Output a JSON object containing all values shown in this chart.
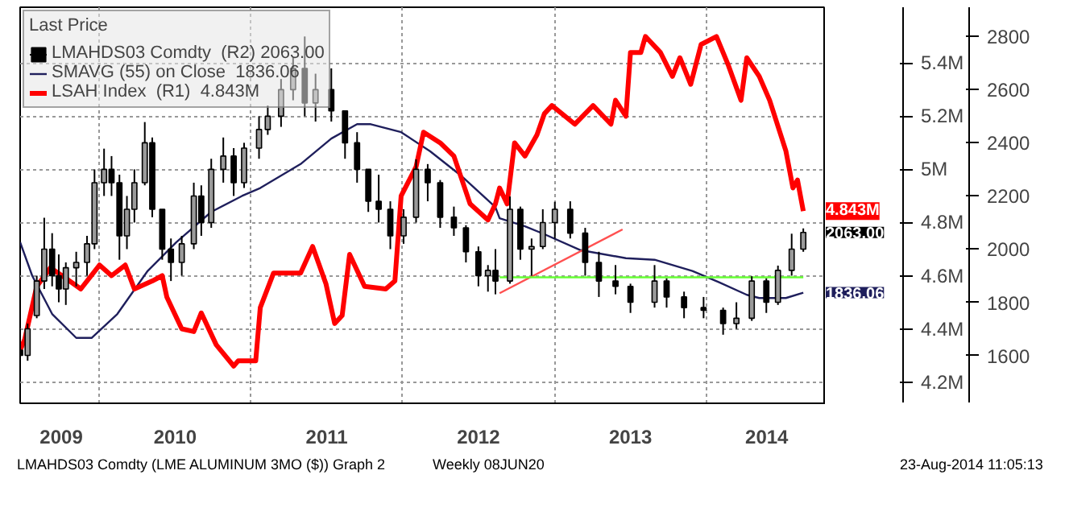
{
  "chart_data": {
    "type": "line",
    "xlim": [
      "2009-06-24",
      "2014-10-15"
    ],
    "xticks": [
      {
        "value": "2009-10-01",
        "label": "2009"
      },
      {
        "value": "2010-01-01",
        "label": null
      },
      {
        "value": "2010-07-02",
        "label": "2010"
      },
      {
        "value": "2011-01-01",
        "label": null
      },
      {
        "value": "2011-07-02",
        "label": "2011"
      },
      {
        "value": "2012-01-01",
        "label": null
      },
      {
        "value": "2012-07-01",
        "label": "2012"
      },
      {
        "value": "2013-01-01",
        "label": null
      },
      {
        "value": "2013-07-02",
        "label": "2013"
      },
      {
        "value": "2014-01-01",
        "label": null
      },
      {
        "value": "2014-05-26",
        "label": "2014"
      }
    ],
    "ylim": [
      4.12,
      5.61
    ],
    "yticks": [
      {
        "value": 4.2,
        "label": "4.2M"
      },
      {
        "value": 4.4,
        "label": "4.4M"
      },
      {
        "value": 4.6,
        "label": "4.6M"
      },
      {
        "value": 4.8,
        "label": "4.8M"
      },
      {
        "value": 5.0,
        "label": "5M"
      },
      {
        "value": 5.2,
        "label": "5.2M"
      },
      {
        "value": 5.4,
        "label": "5.4M"
      }
    ],
    "y2lim": [
      1420,
      2910
    ],
    "y2ticks": [
      1600,
      1800,
      2000,
      2200,
      2400,
      2600,
      2800
    ],
    "grid": true,
    "legend": "top left",
    "legend_title": "Last Price",
    "annotations": [
      "LMAHDS03 Comdty (LME ALUMINUM  3MO ($)) Graph 2",
      "Weekly 08JUN20",
      "23-Aug-2014 11:05:13"
    ],
    "series": [
      {
        "type": "candlestick",
        "name": "LMAHDS03 Comdty  (R2) 2063.00",
        "color": "#000000",
        "axis": "y2",
        "x": [
          "2009-06-24",
          "2009-07-12",
          "2009-08-03",
          "2009-08-21",
          "2009-09-09",
          "2009-09-25",
          "2009-10-12",
          "2009-11-06",
          "2009-12-02",
          "2009-12-20",
          "2010-01-12",
          "2010-01-30",
          "2010-02-18",
          "2010-03-08",
          "2010-03-26",
          "2010-04-20",
          "2010-05-08",
          "2010-06-01",
          "2010-06-22",
          "2010-07-18",
          "2010-08-16",
          "2010-09-03",
          "2010-09-27",
          "2010-10-26",
          "2010-11-20",
          "2010-12-15",
          "2011-01-20",
          "2011-02-10",
          "2011-03-14",
          "2011-04-12",
          "2011-05-10",
          "2011-06-05",
          "2011-07-13",
          "2011-08-15",
          "2011-09-13",
          "2011-10-10",
          "2011-11-04",
          "2011-12-02",
          "2012-01-03",
          "2012-02-02",
          "2012-03-01",
          "2012-03-31",
          "2012-05-03",
          "2012-06-01",
          "2012-07-01",
          "2012-07-24",
          "2012-08-11",
          "2012-09-15",
          "2012-10-10",
          "2012-11-06",
          "2012-12-03",
          "2013-01-01",
          "2013-02-07",
          "2013-03-15",
          "2013-04-17",
          "2013-05-27",
          "2013-07-02",
          "2013-08-29",
          "2013-09-27",
          "2013-11-08",
          "2013-12-25",
          "2014-02-10",
          "2014-03-14",
          "2014-04-20",
          "2014-05-25",
          "2014-06-22",
          "2014-07-25",
          "2014-08-22"
        ],
        "ohlc": [
          [
            1620,
            1700,
            1560,
            1600
          ],
          [
            1600,
            1720,
            1580,
            1700
          ],
          [
            1750,
            1900,
            1740,
            1880
          ],
          [
            1880,
            2118,
            1850,
            2000
          ],
          [
            2000,
            2060,
            1860,
            1900
          ],
          [
            1900,
            1980,
            1800,
            1850
          ],
          [
            1850,
            1950,
            1790,
            1930
          ],
          [
            1930,
            1990,
            1860,
            1950
          ],
          [
            1950,
            2050,
            1900,
            2020
          ],
          [
            2020,
            2300,
            2000,
            2250
          ],
          [
            2250,
            2378,
            2200,
            2300
          ],
          [
            2300,
            2350,
            2200,
            2250
          ],
          [
            2250,
            2280,
            1960,
            2050
          ],
          [
            2050,
            2200,
            2000,
            2150
          ],
          [
            2150,
            2300,
            2100,
            2250
          ],
          [
            2250,
            2478,
            2240,
            2400
          ],
          [
            2400,
            2420,
            2120,
            2150
          ],
          [
            2150,
            2150,
            1960,
            2000
          ],
          [
            2000,
            2040,
            1880,
            1950
          ],
          [
            1950,
            2050,
            1900,
            2020
          ],
          [
            2020,
            2250,
            2000,
            2200
          ],
          [
            2200,
            2240,
            2050,
            2100
          ],
          [
            2100,
            2340,
            2080,
            2300
          ],
          [
            2300,
            2420,
            2250,
            2350
          ],
          [
            2350,
            2380,
            2200,
            2250
          ],
          [
            2250,
            2400,
            2230,
            2380
          ],
          [
            2380,
            2500,
            2340,
            2450
          ],
          [
            2450,
            2540,
            2430,
            2500
          ],
          [
            2500,
            2640,
            2460,
            2600
          ],
          [
            2600,
            2720,
            2560,
            2680
          ],
          [
            2680,
            2800,
            2500,
            2550
          ],
          [
            2550,
            2660,
            2480,
            2600
          ],
          [
            2600,
            2680,
            2480,
            2520
          ],
          [
            2520,
            2520,
            2340,
            2400
          ],
          [
            2400,
            2440,
            2250,
            2300
          ],
          [
            2300,
            2300,
            2140,
            2180
          ],
          [
            2180,
            2280,
            2100,
            2150
          ],
          [
            2150,
            2180,
            2000,
            2050
          ],
          [
            2050,
            2150,
            2020,
            2120
          ],
          [
            2120,
            2338,
            2100,
            2300
          ],
          [
            2300,
            2320,
            2180,
            2250
          ],
          [
            2250,
            2260,
            2080,
            2120
          ],
          [
            2120,
            2160,
            2050,
            2080
          ],
          [
            2080,
            2090,
            1950,
            1990
          ],
          [
            1990,
            2010,
            1860,
            1900
          ],
          [
            1900,
            1940,
            1840,
            1920
          ],
          [
            1920,
            2000,
            1830,
            1880
          ],
          [
            1880,
            2198,
            1870,
            2150
          ],
          [
            2150,
            2160,
            1960,
            2000
          ],
          [
            2000,
            2040,
            1900,
            2010
          ],
          [
            2010,
            2150,
            2000,
            2100
          ],
          [
            2100,
            2178,
            2040,
            2150
          ],
          [
            2150,
            2180,
            2040,
            2060
          ],
          [
            2060,
            2080,
            1900,
            1950
          ],
          [
            1950,
            1990,
            1820,
            1880
          ],
          [
            1880,
            1940,
            1830,
            1860
          ],
          [
            1860,
            1870,
            1760,
            1800
          ],
          [
            1800,
            1940,
            1780,
            1880
          ],
          [
            1880,
            1890,
            1780,
            1820
          ],
          [
            1820,
            1840,
            1740,
            1780
          ],
          [
            1780,
            1820,
            1740,
            1770
          ],
          [
            1770,
            1780,
            1678,
            1720
          ],
          [
            1720,
            1800,
            1700,
            1740
          ],
          [
            1740,
            1898,
            1730,
            1880
          ],
          [
            1880,
            1890,
            1760,
            1800
          ],
          [
            1800,
            1938,
            1790,
            1920
          ],
          [
            1920,
            2058,
            1900,
            2000
          ],
          [
            2000,
            2078,
            1990,
            2063
          ]
        ],
        "value_labels": [
          null,
          null,
          null,
          null,
          null,
          null,
          null,
          null,
          null,
          null,
          null,
          null,
          null,
          null,
          null,
          null,
          null,
          null,
          null,
          null,
          null,
          null,
          null,
          null,
          null,
          null,
          null,
          null,
          null,
          null,
          null,
          null,
          null,
          null,
          null,
          null,
          null,
          null,
          null,
          null,
          null,
          null,
          null,
          null,
          null,
          null,
          null,
          null,
          null,
          null,
          null,
          null,
          null,
          null,
          null,
          null,
          null,
          null,
          null,
          null,
          null,
          null,
          null,
          null,
          null,
          null,
          null,
          "2063.00"
        ]
      },
      {
        "name": "SMAVG (55) on Close  1836.06",
        "color": "#1f1f5c",
        "axis": "y2",
        "x": [
          "2009-06-24",
          "2009-07-23",
          "2009-09-09",
          "2009-11-06",
          "2009-12-13",
          "2010-02-13",
          "2010-04-27",
          "2010-07-05",
          "2010-09-27",
          "2010-12-10",
          "2011-01-23",
          "2011-04-30",
          "2011-07-13",
          "2011-09-13",
          "2011-10-16",
          "2011-12-28",
          "2012-03-07",
          "2012-05-19",
          "2012-08-11",
          "2012-08-21",
          "2012-10-21",
          "2012-12-07",
          "2013-03-04",
          "2013-06-21",
          "2013-08-29",
          "2013-11-28",
          "2014-01-30",
          "2014-04-08",
          "2014-05-08",
          "2014-07-11",
          "2014-08-22"
        ],
        "values": [
          2026,
          1900,
          1756,
          1666,
          1666,
          1756,
          1918,
          2026,
          2140,
          2200,
          2230,
          2320,
          2416,
          2470,
          2470,
          2440,
          2368,
          2278,
          2158,
          2116,
          2086,
          2056,
          1996,
          1966,
          1960,
          1918,
          1876,
          1828,
          1816,
          1816,
          1836.06
        ],
        "value_labels": [
          null,
          null,
          null,
          null,
          null,
          null,
          null,
          null,
          null,
          null,
          null,
          null,
          null,
          null,
          null,
          null,
          null,
          null,
          null,
          null,
          null,
          null,
          null,
          null,
          null,
          null,
          null,
          null,
          null,
          null,
          "1836.06"
        ]
      },
      {
        "name": "LSAH Index  (R1)  4.843M",
        "color": "#ff0000",
        "axis": "y",
        "x": [
          "2009-06-24",
          "2009-07-05",
          "2009-08-03",
          "2009-09-05",
          "2009-10-12",
          "2009-11-17",
          "2010-01-01",
          "2010-01-30",
          "2010-03-04",
          "2010-03-26",
          "2010-05-08",
          "2010-06-01",
          "2010-06-12",
          "2010-07-18",
          "2010-08-16",
          "2010-09-03",
          "2010-10-09",
          "2010-11-20",
          "2010-12-01",
          "2011-01-12",
          "2011-01-23",
          "2011-02-24",
          "2011-04-30",
          "2011-05-29",
          "2011-06-30",
          "2011-07-21",
          "2011-08-08",
          "2011-08-26",
          "2011-10-01",
          "2011-11-21",
          "2011-12-13",
          "2011-12-28",
          "2012-02-02",
          "2012-02-20",
          "2012-03-31",
          "2012-05-03",
          "2012-06-11",
          "2012-07-24",
          "2012-08-11",
          "2012-08-21",
          "2012-09-08",
          "2012-09-26",
          "2012-10-21",
          "2012-11-19",
          "2012-12-07",
          "2012-12-25",
          "2013-02-18",
          "2013-04-03",
          "2013-05-16",
          "2013-05-27",
          "2013-06-21",
          "2013-07-02",
          "2013-07-27",
          "2013-08-07",
          "2013-09-12",
          "2013-10-11",
          "2013-10-29",
          "2013-11-24",
          "2013-12-19",
          "2014-01-25",
          "2014-02-23",
          "2014-03-25",
          "2014-04-08",
          "2014-05-08",
          "2014-06-02",
          "2014-07-11",
          "2014-07-28",
          "2014-08-08",
          "2014-08-22"
        ],
        "values": [
          4.32,
          4.36,
          4.56,
          4.63,
          4.59,
          4.55,
          4.64,
          4.6,
          4.64,
          4.55,
          4.58,
          4.6,
          4.52,
          4.4,
          4.39,
          4.46,
          4.34,
          4.26,
          4.28,
          4.28,
          4.48,
          4.61,
          4.61,
          4.71,
          4.57,
          4.42,
          4.45,
          4.68,
          4.56,
          4.55,
          4.58,
          4.9,
          5.01,
          5.14,
          5.1,
          5.05,
          4.87,
          4.81,
          4.87,
          4.93,
          4.87,
          5.1,
          5.05,
          5.13,
          5.21,
          5.24,
          5.17,
          5.24,
          5.17,
          5.26,
          5.2,
          5.44,
          5.44,
          5.5,
          5.44,
          5.35,
          5.42,
          5.32,
          5.47,
          5.5,
          5.39,
          5.26,
          5.42,
          5.35,
          5.26,
          5.07,
          4.93,
          4.96,
          4.843
        ],
        "value_labels": [
          null,
          null,
          null,
          null,
          null,
          null,
          null,
          null,
          null,
          null,
          null,
          null,
          null,
          null,
          null,
          null,
          null,
          null,
          null,
          null,
          null,
          null,
          null,
          null,
          null,
          null,
          null,
          null,
          null,
          null,
          null,
          null,
          null,
          null,
          null,
          null,
          null,
          null,
          null,
          null,
          null,
          null,
          null,
          null,
          null,
          null,
          null,
          null,
          null,
          null,
          null,
          null,
          null,
          null,
          null,
          null,
          null,
          null,
          null,
          null,
          null,
          null,
          null,
          null,
          null,
          null,
          null,
          null,
          "4.843M"
        ]
      },
      {
        "color": "#ff5050",
        "axis": "y2",
        "x": [
          "2012-08-21",
          "2013-06-13"
        ],
        "values": [
          1834,
          2074
        ]
      },
      {
        "color": "#66ff33",
        "axis": "y2",
        "x": [
          "2012-08-21",
          "2014-08-22"
        ],
        "values": [
          1894,
          1894
        ]
      }
    ]
  }
}
